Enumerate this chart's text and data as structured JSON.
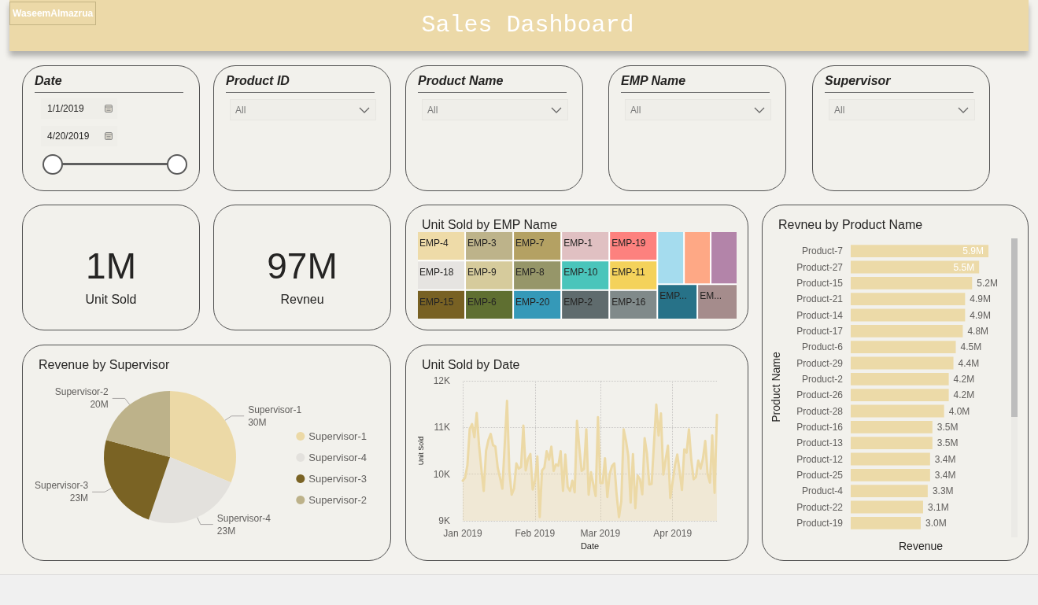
{
  "chart_data": [
    {
      "type": "other",
      "title": "Sales Dashboard",
      "annotations": [
        "WaseemAlmazrua"
      ]
    },
    {
      "type": "other",
      "title": "Date",
      "annotations": [
        "1/1/2019",
        "4/20/2019"
      ]
    },
    {
      "type": "other",
      "title": "Product ID",
      "annotations": [
        "All"
      ]
    },
    {
      "type": "other",
      "title": "Product Name",
      "annotations": [
        "All"
      ]
    },
    {
      "type": "other",
      "title": "EMP Name",
      "annotations": [
        "All"
      ]
    },
    {
      "type": "other",
      "title": "Supervisor",
      "annotations": [
        "All"
      ]
    },
    {
      "type": "other",
      "title": "Unit Sold",
      "annotations": [
        "1M"
      ]
    },
    {
      "type": "other",
      "title": "Revneu",
      "annotations": [
        "97M"
      ]
    },
    {
      "type": "other",
      "title": "Unit Sold by EMP Name",
      "categories": [
        "EMP-4",
        "EMP-18",
        "EMP-15",
        "EMP-3",
        "EMP-9",
        "EMP-6",
        "EMP-7",
        "EMP-8",
        "EMP-20",
        "EMP-1",
        "EMP-10",
        "EMP-2",
        "EMP-19",
        "EMP-11",
        "EMP-16",
        null,
        null,
        null,
        "EMP...",
        "EM..."
      ],
      "colors": [
        "#eedba8",
        "#e6e4e1",
        "#786123",
        "#bdb38a",
        "#d6cb9c",
        "#5f6f31",
        "#b4a163",
        "#969669",
        "#3599b8",
        "#e0c0c2",
        "#4ac5bb",
        "#5f6b6d",
        "#fd817e",
        "#f4d25b",
        "#808a8a",
        "#a5dcee",
        "#fea885",
        "#b384a9",
        "#277288",
        "#a58c8c"
      ]
    },
    {
      "type": "pie",
      "title": "Revenue by Supervisor",
      "categories": [
        "Supervisor-1",
        "Supervisor-4",
        "Supervisor-3",
        "Supervisor-2"
      ],
      "values": [
        30,
        23,
        23,
        20
      ],
      "value_labels": [
        "30M",
        "23M",
        "23M",
        "20M"
      ],
      "colors": [
        "#ecd9a6",
        "#e3e1dd",
        "#7a6324",
        "#bdb28a"
      ],
      "legend": "right"
    },
    {
      "type": "area",
      "title": "Unit Sold by Date",
      "xlabel": "Date",
      "ylabel": "Unit Sold",
      "color": "#ecd9a6",
      "x": [
        "2019-01-01",
        "2019-01-02",
        "2019-01-03",
        "2019-01-04",
        "2019-01-05",
        "2019-01-06",
        "2019-01-07",
        "2019-01-08",
        "2019-01-09",
        "2019-01-10",
        "2019-01-11",
        "2019-01-12",
        "2019-01-13",
        "2019-01-14",
        "2019-01-15",
        "2019-01-16",
        "2019-01-17",
        "2019-01-18",
        "2019-01-19",
        "2019-01-20",
        "2019-01-21",
        "2019-01-22",
        "2019-01-23",
        "2019-01-24",
        "2019-01-25",
        "2019-01-26",
        "2019-01-27",
        "2019-01-28",
        "2019-01-29",
        "2019-01-30",
        "2019-01-31",
        "2019-02-01",
        "2019-02-02",
        "2019-02-03",
        "2019-02-04",
        "2019-02-05",
        "2019-02-06",
        "2019-02-07",
        "2019-02-08",
        "2019-02-09",
        "2019-02-10",
        "2019-02-11",
        "2019-02-12",
        "2019-02-13",
        "2019-02-14",
        "2019-02-15",
        "2019-02-16",
        "2019-02-17",
        "2019-02-18",
        "2019-02-19",
        "2019-02-20",
        "2019-02-21",
        "2019-02-22",
        "2019-02-23",
        "2019-02-24",
        "2019-02-25",
        "2019-02-26",
        "2019-02-27",
        "2019-02-28",
        "2019-03-01",
        "2019-03-02",
        "2019-03-03",
        "2019-03-04",
        "2019-03-05",
        "2019-03-06",
        "2019-03-07",
        "2019-03-08",
        "2019-03-09",
        "2019-03-10",
        "2019-03-11",
        "2019-03-12",
        "2019-03-13",
        "2019-03-14",
        "2019-03-15",
        "2019-03-16",
        "2019-03-17",
        "2019-03-18",
        "2019-03-19",
        "2019-03-20",
        "2019-03-21",
        "2019-03-22",
        "2019-03-23",
        "2019-03-24",
        "2019-03-25",
        "2019-03-26",
        "2019-03-27",
        "2019-03-28",
        "2019-03-29",
        "2019-03-30",
        "2019-03-31",
        "2019-04-01",
        "2019-04-02",
        "2019-04-03",
        "2019-04-04",
        "2019-04-05",
        "2019-04-06",
        "2019-04-07",
        "2019-04-08",
        "2019-04-09",
        "2019-04-10",
        "2019-04-11",
        "2019-04-12",
        "2019-04-13",
        "2019-04-14",
        "2019-04-15",
        "2019-04-16",
        "2019-04-17",
        "2019-04-18",
        "2019-04-19",
        "2019-04-20"
      ],
      "values": [
        9860,
        9920,
        10190,
        10970,
        11070,
        10790,
        11310,
        10610,
        10110,
        9640,
        10500,
        10730,
        10860,
        10620,
        10590,
        10140,
        9920,
        9690,
        10630,
        11570,
        10060,
        9560,
        9690,
        10230,
        10120,
        10150,
        11040,
        10080,
        10330,
        10430,
        9670,
        9860,
        10380,
        9080,
        10080,
        10140,
        10490,
        10310,
        10590,
        10070,
        10210,
        10180,
        10490,
        9640,
        10420,
        9730,
        9640,
        9860,
        9610,
        11140,
        10560,
        10070,
        10110,
        10960,
        9560,
        10040,
        9780,
        9530,
        11220,
        9810,
        9810,
        10340,
        9510,
        10000,
        10170,
        10230,
        9560,
        9080,
        9420,
        10960,
        10720,
        10390,
        9390,
        10430,
        9270,
        9970,
        9890,
        9570,
        10770,
        10440,
        9780,
        9790,
        10640,
        11490,
        10830,
        11300,
        9990,
        10310,
        10610,
        9490,
        9830,
        10190,
        10420,
        10060,
        9660,
        10530,
        10460,
        10960,
        10310,
        9890,
        9940,
        10290,
        10120,
        10330,
        10710,
        10000,
        9820,
        10830,
        9600,
        11270
      ],
      "xlim": [
        "2019-01-01",
        "2019-04-20"
      ],
      "xticks": [
        {
          "value": "2019-01-01",
          "label": "Jan 2019"
        },
        {
          "value": "2019-02-01",
          "label": "Feb 2019"
        },
        {
          "value": "2019-03-01",
          "label": "Mar 2019"
        },
        {
          "value": "2019-04-01",
          "label": "Apr 2019"
        }
      ],
      "ylim": [
        9000,
        12000
      ],
      "yticks": [
        {
          "value": 9000,
          "label": "9K"
        },
        {
          "value": 10000,
          "label": "10K"
        },
        {
          "value": 11000,
          "label": "11K"
        },
        {
          "value": 12000,
          "label": "12K"
        }
      ],
      "grid": true
    },
    {
      "type": "bar",
      "orientation": "horizontal",
      "title": "Revneu by Product Name",
      "xlabel": "Revenue",
      "ylabel": "Product Name",
      "color": "#ecdaa8",
      "categories": [
        "Product-7",
        "Product-27",
        "Product-15",
        "Product-21",
        "Product-14",
        "Product-17",
        "Product-6",
        "Product-29",
        "Product-2",
        "Product-26",
        "Product-28",
        "Product-16",
        "Product-13",
        "Product-12",
        "Product-25",
        "Product-4",
        "Product-22",
        "Product-19"
      ],
      "values": [
        5.9,
        5.5,
        5.2,
        4.9,
        4.9,
        4.8,
        4.5,
        4.4,
        4.2,
        4.2,
        4.0,
        3.5,
        3.5,
        3.4,
        3.4,
        3.3,
        3.1,
        3.0
      ],
      "value_labels": [
        "5.9M",
        "5.5M",
        "5.2M",
        "4.9M",
        "4.9M",
        "4.8M",
        "4.5M",
        "4.4M",
        "4.2M",
        "4.2M",
        "4.0M",
        "3.5M",
        "3.5M",
        "3.4M",
        "3.4M",
        "3.3M",
        "3.1M",
        "3.0M"
      ]
    }
  ]
}
